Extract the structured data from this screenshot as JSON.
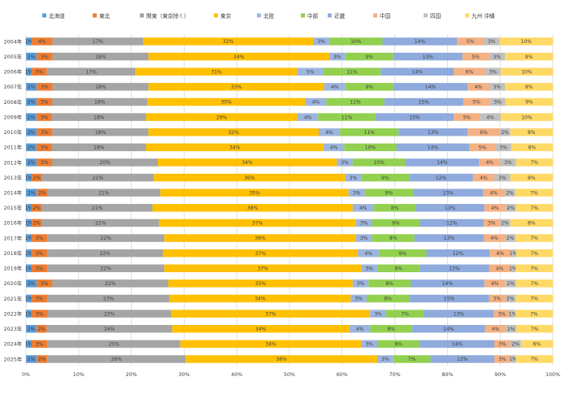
{
  "chart_data": {
    "type": "bar",
    "orientation": "horizontal",
    "stacked": "percent",
    "categories": [
      "2004年",
      "2005年",
      "2006年",
      "2007年",
      "2008年",
      "2009年",
      "2010年",
      "2011年",
      "2012年",
      "2013年",
      "2014年",
      "2015年",
      "2016年",
      "2017年",
      "2018年",
      "2019年",
      "2020年",
      "2021年",
      "2022年",
      "2023年",
      "2024年",
      "2025年"
    ],
    "series": [
      {
        "name": "北海道",
        "color": "#5B9BD5",
        "values": [
          1,
          2,
          1,
          2,
          2,
          2,
          2,
          2,
          2,
          1,
          2,
          1,
          1,
          1,
          1,
          1,
          2,
          1,
          1,
          2,
          1,
          2
        ]
      },
      {
        "name": "東北",
        "color": "#ED7D31",
        "values": [
          4,
          3,
          3,
          3,
          3,
          3,
          3,
          3,
          3,
          2,
          2,
          2,
          2,
          3,
          3,
          3,
          3,
          3,
          3,
          2,
          3,
          2
        ]
      },
      {
        "name": "関東（東京除く）",
        "color": "#A5A5A5",
        "values": [
          17,
          18,
          17,
          18,
          18,
          18,
          18,
          18,
          20,
          21,
          21,
          21,
          22,
          22,
          22,
          22,
          22,
          23,
          23,
          24,
          25,
          26
        ]
      },
      {
        "name": "東京",
        "color": "#FFC000",
        "values": [
          32,
          34,
          31,
          33,
          30,
          29,
          32,
          34,
          34,
          36,
          35,
          38,
          37,
          36,
          37,
          37,
          35,
          34,
          37,
          34,
          34,
          36
        ]
      },
      {
        "name": "北陸",
        "color": "#9DB5DE",
        "values": [
          3,
          3,
          5,
          4,
          4,
          4,
          4,
          4,
          3,
          3,
          3,
          4,
          3,
          3,
          4,
          3,
          3,
          3,
          3,
          4,
          3,
          3
        ]
      },
      {
        "name": "中部",
        "color": "#92D050",
        "values": [
          10,
          9,
          11,
          9,
          11,
          11,
          11,
          10,
          10,
          9,
          9,
          8,
          9,
          8,
          9,
          8,
          8,
          8,
          7,
          8,
          8,
          7
        ]
      },
      {
        "name": "近畿",
        "color": "#8FAADC",
        "values": [
          14,
          13,
          14,
          14,
          15,
          15,
          13,
          14,
          14,
          12,
          13,
          13,
          12,
          13,
          12,
          13,
          14,
          15,
          13,
          14,
          14,
          12
        ]
      },
      {
        "name": "中国",
        "color": "#F4B183",
        "values": [
          5,
          5,
          6,
          4,
          5,
          5,
          6,
          5,
          4,
          4,
          4,
          4,
          3,
          4,
          4,
          4,
          4,
          3,
          3,
          4,
          3,
          3
        ]
      },
      {
        "name": "四国",
        "color": "#C0C0C0",
        "values": [
          3,
          3,
          3,
          3,
          3,
          4,
          2,
          3,
          3,
          3,
          2,
          2,
          2,
          2,
          1,
          1,
          2,
          2,
          1,
          2,
          2,
          1
        ]
      },
      {
        "name": "九州 沖縄",
        "color": "#FFD966",
        "values": [
          10,
          9,
          10,
          9,
          9,
          10,
          8,
          8,
          7,
          8,
          7,
          7,
          8,
          7,
          7,
          7,
          7,
          7,
          7,
          7,
          6,
          7
        ]
      }
    ],
    "x_ticks": [
      "0%",
      "10%",
      "20%",
      "30%",
      "40%",
      "50%",
      "60%",
      "70%",
      "80%",
      "90%",
      "100%"
    ],
    "xlim": [
      0,
      100
    ],
    "legend_position": "top",
    "grid": true,
    "title": "",
    "xlabel": "",
    "ylabel": ""
  }
}
